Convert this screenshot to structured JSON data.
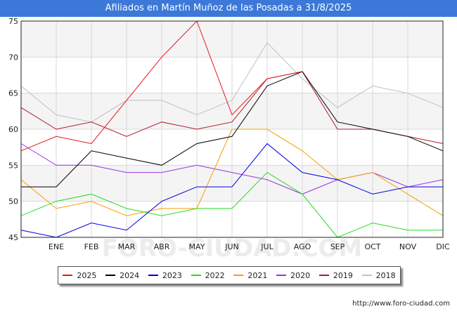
{
  "chart_data": {
    "type": "line",
    "title": "Afiliados en Martín Muñoz de las Posadas a 31/8/2025",
    "categories": [
      "",
      "ENE",
      "FEB",
      "MAR",
      "ABR",
      "MAY",
      "JUN",
      "JUL",
      "AGO",
      "SEP",
      "OCT",
      "NOV",
      "DIC"
    ],
    "ylim": [
      45,
      75
    ],
    "yticks": [
      45,
      50,
      55,
      60,
      65,
      70,
      75
    ],
    "grid": true,
    "legend_position": "bottom",
    "series": [
      {
        "name": "2025",
        "color": "#e8141c",
        "values": [
          57,
          59,
          58,
          64,
          70,
          75,
          62,
          67,
          68,
          null,
          null,
          null,
          null
        ]
      },
      {
        "name": "2024",
        "color": "#000000",
        "values": [
          52,
          52,
          57,
          56,
          55,
          58,
          59,
          66,
          68,
          61,
          60,
          59,
          57
        ]
      },
      {
        "name": "2023",
        "color": "#0000e0",
        "values": [
          46,
          45,
          47,
          46,
          50,
          52,
          52,
          58,
          54,
          53,
          51,
          52,
          52
        ]
      },
      {
        "name": "2022",
        "color": "#22dd22",
        "values": [
          48,
          50,
          51,
          49,
          48,
          49,
          49,
          54,
          51,
          45,
          47,
          46,
          46
        ]
      },
      {
        "name": "2021",
        "color": "#f5a000",
        "values": [
          53,
          49,
          50,
          48,
          49,
          49,
          60,
          60,
          57,
          53,
          54,
          51,
          48
        ]
      },
      {
        "name": "2020",
        "color": "#a030e0",
        "values": [
          58,
          55,
          55,
          54,
          54,
          55,
          54,
          53,
          51,
          53,
          54,
          52,
          53
        ]
      },
      {
        "name": "2019",
        "color": "#b01c2c",
        "values": [
          63,
          60,
          61,
          59,
          61,
          60,
          61,
          67,
          68,
          60,
          60,
          59,
          58
        ]
      },
      {
        "name": "2018",
        "color": "#c0c0c0",
        "values": [
          66,
          62,
          61,
          64,
          64,
          62,
          64,
          72,
          67,
          63,
          66,
          65,
          63
        ]
      }
    ],
    "watermark": "FORO-CIUDAD.COM"
  },
  "footer": {
    "url": "http://www.foro-ciudad.com"
  }
}
